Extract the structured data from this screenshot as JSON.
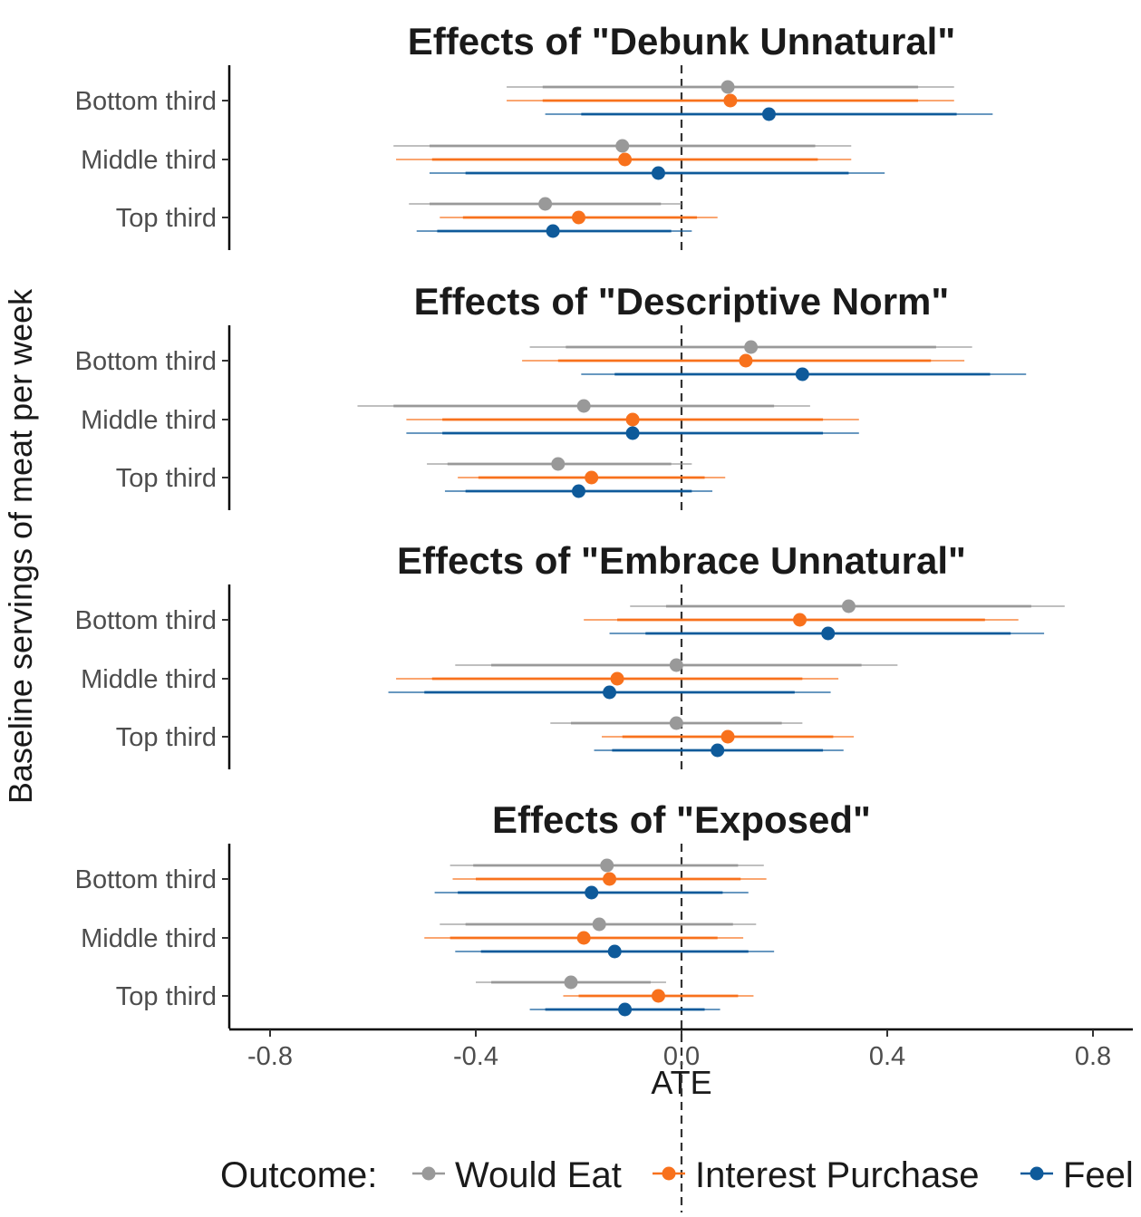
{
  "chart_data": {
    "type": "forest",
    "xlabel": "ATE",
    "ylabel": "Baseline servings of meat per week",
    "xlim": [
      -0.88,
      0.88
    ],
    "x_ticks": [
      "-0.8",
      "-0.4",
      "0.0",
      "0.4",
      "0.8"
    ],
    "x_tick_values": [
      -0.8,
      -0.4,
      0.0,
      0.4,
      0.8
    ],
    "reference_line": 0.0,
    "categories": [
      "Bottom third",
      "Middle third",
      "Top third"
    ],
    "colors": {
      "Would Eat": "#999999",
      "Interest Purchase": "#f8711c",
      "Feel": "#0e5a9a"
    },
    "legend": {
      "title": "Outcome:",
      "position": "bottom",
      "items": [
        "Would Eat",
        "Interest Purchase",
        "Feel"
      ]
    },
    "panels": [
      {
        "title": "Effects of \"Debunk Unnatural\"",
        "rows": [
          {
            "category": "Bottom third",
            "series": [
              {
                "name": "Would Eat",
                "est": 0.09,
                "ci_inner": [
                  -0.27,
                  0.46
                ],
                "ci_outer": [
                  -0.34,
                  0.53
                ]
              },
              {
                "name": "Interest Purchase",
                "est": 0.095,
                "ci_inner": [
                  -0.27,
                  0.46
                ],
                "ci_outer": [
                  -0.34,
                  0.53
                ]
              },
              {
                "name": "Feel",
                "est": 0.17,
                "ci_inner": [
                  -0.195,
                  0.535
                ],
                "ci_outer": [
                  -0.265,
                  0.605
                ]
              }
            ]
          },
          {
            "category": "Middle third",
            "series": [
              {
                "name": "Would Eat",
                "est": -0.115,
                "ci_inner": [
                  -0.49,
                  0.26
                ],
                "ci_outer": [
                  -0.56,
                  0.33
                ]
              },
              {
                "name": "Interest Purchase",
                "est": -0.11,
                "ci_inner": [
                  -0.485,
                  0.265
                ],
                "ci_outer": [
                  -0.555,
                  0.33
                ]
              },
              {
                "name": "Feel",
                "est": -0.045,
                "ci_inner": [
                  -0.42,
                  0.325
                ],
                "ci_outer": [
                  -0.49,
                  0.395
                ]
              }
            ]
          },
          {
            "category": "Top third",
            "series": [
              {
                "name": "Would Eat",
                "est": -0.265,
                "ci_inner": [
                  -0.49,
                  -0.04
                ],
                "ci_outer": [
                  -0.53,
                  0.0
                ]
              },
              {
                "name": "Interest Purchase",
                "est": -0.2,
                "ci_inner": [
                  -0.425,
                  0.03
                ],
                "ci_outer": [
                  -0.47,
                  0.07
                ]
              },
              {
                "name": "Feel",
                "est": -0.25,
                "ci_inner": [
                  -0.475,
                  -0.02
                ],
                "ci_outer": [
                  -0.515,
                  0.02
                ]
              }
            ]
          }
        ]
      },
      {
        "title": "Effects of \"Descriptive Norm\"",
        "rows": [
          {
            "category": "Bottom third",
            "series": [
              {
                "name": "Would Eat",
                "est": 0.135,
                "ci_inner": [
                  -0.225,
                  0.495
                ],
                "ci_outer": [
                  -0.295,
                  0.565
                ]
              },
              {
                "name": "Interest Purchase",
                "est": 0.125,
                "ci_inner": [
                  -0.24,
                  0.485
                ],
                "ci_outer": [
                  -0.31,
                  0.55
                ]
              },
              {
                "name": "Feel",
                "est": 0.235,
                "ci_inner": [
                  -0.13,
                  0.6
                ],
                "ci_outer": [
                  -0.195,
                  0.67
                ]
              }
            ]
          },
          {
            "category": "Middle third",
            "series": [
              {
                "name": "Would Eat",
                "est": -0.19,
                "ci_inner": [
                  -0.56,
                  0.18
                ],
                "ci_outer": [
                  -0.63,
                  0.25
                ]
              },
              {
                "name": "Interest Purchase",
                "est": -0.095,
                "ci_inner": [
                  -0.465,
                  0.275
                ],
                "ci_outer": [
                  -0.535,
                  0.345
                ]
              },
              {
                "name": "Feel",
                "est": -0.095,
                "ci_inner": [
                  -0.465,
                  0.275
                ],
                "ci_outer": [
                  -0.535,
                  0.345
                ]
              }
            ]
          },
          {
            "category": "Top third",
            "series": [
              {
                "name": "Would Eat",
                "est": -0.24,
                "ci_inner": [
                  -0.455,
                  -0.02
                ],
                "ci_outer": [
                  -0.495,
                  0.02
                ]
              },
              {
                "name": "Interest Purchase",
                "est": -0.175,
                "ci_inner": [
                  -0.395,
                  0.045
                ],
                "ci_outer": [
                  -0.435,
                  0.085
                ]
              },
              {
                "name": "Feel",
                "est": -0.2,
                "ci_inner": [
                  -0.42,
                  0.02
                ],
                "ci_outer": [
                  -0.46,
                  0.06
                ]
              }
            ]
          }
        ]
      },
      {
        "title": "Effects of \"Embrace Unnatural\"",
        "rows": [
          {
            "category": "Bottom third",
            "series": [
              {
                "name": "Would Eat",
                "est": 0.325,
                "ci_inner": [
                  -0.03,
                  0.68
                ],
                "ci_outer": [
                  -0.1,
                  0.745
                ]
              },
              {
                "name": "Interest Purchase",
                "est": 0.23,
                "ci_inner": [
                  -0.125,
                  0.59
                ],
                "ci_outer": [
                  -0.19,
                  0.655
                ]
              },
              {
                "name": "Feel",
                "est": 0.285,
                "ci_inner": [
                  -0.07,
                  0.64
                ],
                "ci_outer": [
                  -0.14,
                  0.705
                ]
              }
            ]
          },
          {
            "category": "Middle third",
            "series": [
              {
                "name": "Would Eat",
                "est": -0.01,
                "ci_inner": [
                  -0.37,
                  0.35
                ],
                "ci_outer": [
                  -0.44,
                  0.42
                ]
              },
              {
                "name": "Interest Purchase",
                "est": -0.125,
                "ci_inner": [
                  -0.485,
                  0.235
                ],
                "ci_outer": [
                  -0.555,
                  0.305
                ]
              },
              {
                "name": "Feel",
                "est": -0.14,
                "ci_inner": [
                  -0.5,
                  0.22
                ],
                "ci_outer": [
                  -0.57,
                  0.29
                ]
              }
            ]
          },
          {
            "category": "Top third",
            "series": [
              {
                "name": "Would Eat",
                "est": -0.01,
                "ci_inner": [
                  -0.215,
                  0.195
                ],
                "ci_outer": [
                  -0.255,
                  0.235
                ]
              },
              {
                "name": "Interest Purchase",
                "est": 0.09,
                "ci_inner": [
                  -0.115,
                  0.295
                ],
                "ci_outer": [
                  -0.155,
                  0.335
                ]
              },
              {
                "name": "Feel",
                "est": 0.07,
                "ci_inner": [
                  -0.135,
                  0.275
                ],
                "ci_outer": [
                  -0.17,
                  0.315
                ]
              }
            ]
          }
        ]
      },
      {
        "title": "Effects of \"Exposed\"",
        "rows": [
          {
            "category": "Bottom third",
            "series": [
              {
                "name": "Would Eat",
                "est": -0.145,
                "ci_inner": [
                  -0.405,
                  0.11
                ],
                "ci_outer": [
                  -0.45,
                  0.16
                ]
              },
              {
                "name": "Interest Purchase",
                "est": -0.14,
                "ci_inner": [
                  -0.4,
                  0.115
                ],
                "ci_outer": [
                  -0.445,
                  0.165
                ]
              },
              {
                "name": "Feel",
                "est": -0.175,
                "ci_inner": [
                  -0.435,
                  0.08
                ],
                "ci_outer": [
                  -0.48,
                  0.13
                ]
              }
            ]
          },
          {
            "category": "Middle third",
            "series": [
              {
                "name": "Would Eat",
                "est": -0.16,
                "ci_inner": [
                  -0.42,
                  0.1
                ],
                "ci_outer": [
                  -0.47,
                  0.145
                ]
              },
              {
                "name": "Interest Purchase",
                "est": -0.19,
                "ci_inner": [
                  -0.45,
                  0.07
                ],
                "ci_outer": [
                  -0.5,
                  0.12
                ]
              },
              {
                "name": "Feel",
                "est": -0.13,
                "ci_inner": [
                  -0.39,
                  0.13
                ],
                "ci_outer": [
                  -0.44,
                  0.18
                ]
              }
            ]
          },
          {
            "category": "Top third",
            "series": [
              {
                "name": "Would Eat",
                "est": -0.215,
                "ci_inner": [
                  -0.37,
                  -0.06
                ],
                "ci_outer": [
                  -0.4,
                  -0.03
                ]
              },
              {
                "name": "Interest Purchase",
                "est": -0.045,
                "ci_inner": [
                  -0.2,
                  0.11
                ],
                "ci_outer": [
                  -0.23,
                  0.14
                ]
              },
              {
                "name": "Feel",
                "est": -0.11,
                "ci_inner": [
                  -0.265,
                  0.045
                ],
                "ci_outer": [
                  -0.295,
                  0.075
                ]
              }
            ]
          }
        ]
      }
    ]
  }
}
